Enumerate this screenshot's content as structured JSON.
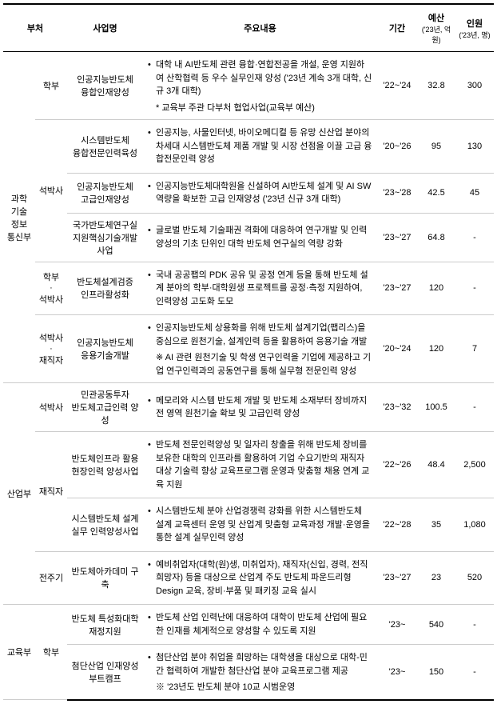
{
  "headers": {
    "dept": "부처",
    "level": "",
    "name": "사업명",
    "content": "주요내용",
    "period": "기간",
    "budget": "예산",
    "budget_sub": "('23년, 억원)",
    "people": "인원",
    "people_sub": "('23년, 명)"
  },
  "rows": [
    {
      "dept": "과학\n기술\n정보\n통신부",
      "dept_rowspan": 6,
      "level": "학부",
      "level_rowspan": 1,
      "name": "인공지능반도체\n융합인재양성",
      "bullets": [
        "대학 내 AI반도체 관련 융합·연합전공을 개설, 운영 지원하여 산학협력 등 우수 실무인재 양성 ('23년 계속 3개 대학, 신규 3개 대학)"
      ],
      "notes": [
        {
          "type": "star",
          "text": "교육부 주관 다부처 협업사업(교육부 예산)"
        }
      ],
      "period": "'22~'24",
      "budget": "32.8",
      "people": "300"
    },
    {
      "level": "석박사",
      "level_rowspan": 3,
      "name": "시스템반도체\n융합전문인력육성",
      "bullets": [
        "인공지능, 사물인터넷, 바이오메디컬 등 유망 신산업 분야의 차세대 시스템반도체 제품 개발 및 시장 선점을 이끌 고급 융합전문인력 양성"
      ],
      "period": "'20~'26",
      "budget": "95",
      "people": "130"
    },
    {
      "name": "인공지능반도체\n고급인재양성",
      "bullets": [
        "인공지능반도체대학원을 신설하여 AI반도체 설계 및 AI SW 역량을 확보한 고급 인재양성 ('23년 신규 3개 대학)"
      ],
      "period": "'23~'28",
      "budget": "42.5",
      "people": "45"
    },
    {
      "name": "국가반도체연구실\n지원핵심기술개발사업",
      "bullets": [
        "글로벌 반도체 기술패권 격화에 대응하여 연구개발 및 인력양성의 기초 단위인 대학 반도체 연구실의 역량 강화"
      ],
      "period": "'23~'27",
      "budget": "64.8",
      "people": "-"
    },
    {
      "level": "학부\n·\n석박사",
      "level_rowspan": 1,
      "name": "반도체설계검증\n인프라활성화",
      "bullets": [
        "국내 공공팹의 PDK 공유 및 공정 연계 등을 통해 반도체 설계 분야의 학부·대학원생 프로젝트를 공정·측정 지원하여, 인력양성 고도화 도모"
      ],
      "period": "'23~'27",
      "budget": "120",
      "people": "-"
    },
    {
      "level": "석박사\n·\n재직자",
      "level_rowspan": 1,
      "name": "인공지능반도체\n응용기술개발",
      "bullets": [
        "인공지능반도체 상용화를 위해 반도체 설계기업(팹리스)을 중심으로 원천기술, 설계인력 등을 활용하여 응용기술 개발"
      ],
      "notes": [
        {
          "type": "dstar",
          "text": "AI 관련 원천기술 및 학생 연구인력을 기업에 제공하고 기업 연구인력과의 공동연구를 통해 실무형 전문인력 양성"
        }
      ],
      "period": "'20~'24",
      "budget": "120",
      "people": "7"
    },
    {
      "dept": "산업부",
      "dept_rowspan": 4,
      "level": "석박사",
      "level_rowspan": 1,
      "name": "민관공동투자\n반도체고급인력 양성",
      "bullets": [
        "메모리와 시스템 반도체 개발 및 반도체 소재부터 장비까지 전 영역 원천기술 확보 및 고급인력 양성"
      ],
      "period": "'23~'32",
      "budget": "100.5",
      "people": "-"
    },
    {
      "level": "재직자",
      "level_rowspan": 2,
      "name": "반도체인프라 활용\n현장인력 양성사업",
      "bullets": [
        "반도체 전문인력양성 및 일자리 창출을 위해 반도체 장비를 보유한 대학의 인프라를 활용하여 기업 수요기반의 재직자 대상 기술력 향상 교육프로그램 운영과 맞춤형 채용 연계 교육 지원"
      ],
      "period": "'22~'26",
      "budget": "48.4",
      "people": "2,500"
    },
    {
      "name": "시스템반도체 설계\n실무 인력양성사업",
      "bullets": [
        "시스템반도체 분야 산업경쟁력 강화를 위한 시스템반도체 설계 교육센터 운영 및 산업계 맞춤형 교육과정 개발·운영을 통한 설계 실무인력 양성"
      ],
      "period": "'22~'28",
      "budget": "35",
      "people": "1,080"
    },
    {
      "level": "전주기",
      "level_rowspan": 1,
      "name": "반도체아카데미 구축",
      "bullets": [
        "예비취업자(대학(원)생, 미취업자), 재직자(신입, 경력, 전직희망자) 등을 대상으로 산업계 주도 반도체 파운드리형 Design 교육, 장비·부품 및 패키징 교육 실시"
      ],
      "period": "'23~'27",
      "budget": "23",
      "people": "520"
    },
    {
      "dept": "교육부",
      "dept_rowspan": 2,
      "level": "학부",
      "level_rowspan": 2,
      "name": "반도체 특성화대학\n재정지원",
      "bullets": [
        "반도체 산업 인력난에 대응하여 대학이 반도체 산업에 필요한 인재를 체계적으로 양성할 수 있도록 지원"
      ],
      "period": "'23~",
      "budget": "540",
      "people": "-"
    },
    {
      "name": "첨단산업 인재양성\n부트캠프",
      "bullets": [
        "첨단산업 분야 취업을 희망하는 대학생을 대상으로 대학-민간 협력하여 개발한 첨단산업 분야 교육프로그램 제공"
      ],
      "notes": [
        {
          "type": "dstar",
          "text": "'23년도 반도체 분야 10교 시범운영"
        }
      ],
      "period": "'23~",
      "budget": "150",
      "people": "-"
    }
  ]
}
